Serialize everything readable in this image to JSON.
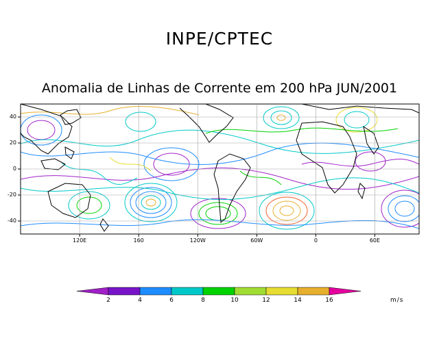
{
  "header": {
    "organization": "INPE/CPTEC",
    "subtitle": "Anomalia de Linhas de Corrente em 200 hPa JUN/2001"
  },
  "map": {
    "lon_range": [
      80,
      350
    ],
    "lat_range": [
      -50,
      50
    ],
    "x_ticks": [
      {
        "lon": 120,
        "label": "120E"
      },
      {
        "lon": 160,
        "label": "160"
      },
      {
        "lon": 200,
        "label": "120W"
      },
      {
        "lon": 240,
        "label": "60W"
      },
      {
        "lon": 280,
        "label": "0"
      },
      {
        "lon": 320,
        "label": "60E"
      }
    ],
    "y_ticks": [
      {
        "lat": 40,
        "label": "40"
      },
      {
        "lat": 20,
        "label": "20"
      },
      {
        "lat": 0,
        "label": "0"
      },
      {
        "lat": -20,
        "label": "-20"
      },
      {
        "lat": -40,
        "label": "-40"
      }
    ]
  },
  "colorbar": {
    "labels": [
      "2",
      "4",
      "6",
      "8",
      "10",
      "12",
      "14",
      "16"
    ],
    "colors": [
      "#a020c8",
      "#7814c8",
      "#1e8cff",
      "#00c8c8",
      "#00d200",
      "#a0dc32",
      "#e6dc32",
      "#e6af2d",
      "#f06028",
      "#fa3c3c",
      "#e600a0"
    ],
    "units": "m/s"
  }
}
